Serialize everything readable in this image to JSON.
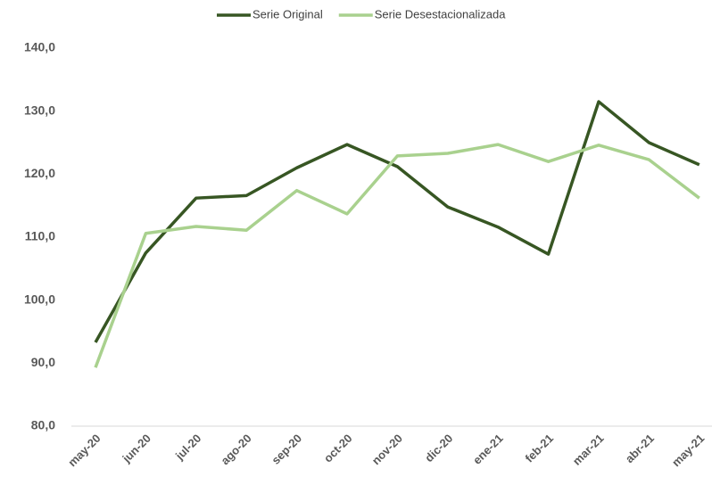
{
  "chart_data": {
    "type": "line",
    "categories": [
      "may-20",
      "jun-20",
      "jul-20",
      "ago-20",
      "sep-20",
      "oct-20",
      "nov-20",
      "dic-20",
      "ene-21",
      "feb-21",
      "mar-21",
      "abr-21",
      "may-21"
    ],
    "series": [
      {
        "name": "Serie Original",
        "color": "#375623",
        "values": [
          93.3,
          107.5,
          116.2,
          116.6,
          121.0,
          124.7,
          121.2,
          114.8,
          111.6,
          107.3,
          131.5,
          125.0,
          121.5
        ]
      },
      {
        "name": "Serie Desestacionalizada",
        "color": "#a9d18e",
        "values": [
          89.3,
          110.6,
          111.7,
          111.1,
          117.4,
          113.7,
          122.9,
          123.3,
          124.7,
          122.0,
          124.6,
          122.3,
          116.2
        ]
      }
    ],
    "ylim": [
      80,
      140
    ],
    "yticks": [
      {
        "value": 80,
        "label": "80,0"
      },
      {
        "value": 90,
        "label": "90,0"
      },
      {
        "value": 100,
        "label": "100,0"
      },
      {
        "value": 110,
        "label": "110,0"
      },
      {
        "value": 120,
        "label": "120,0"
      },
      {
        "value": 130,
        "label": "130,0"
      },
      {
        "value": 140,
        "label": "140,0"
      }
    ],
    "legend": "top"
  }
}
